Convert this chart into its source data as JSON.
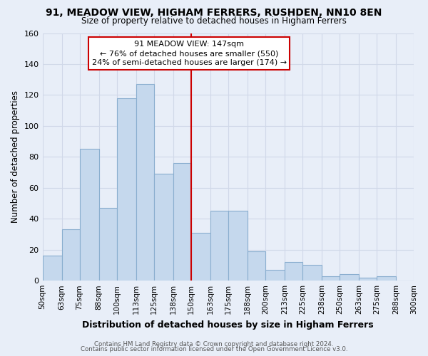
{
  "title": "91, MEADOW VIEW, HIGHAM FERRERS, RUSHDEN, NN10 8EN",
  "subtitle": "Size of property relative to detached houses in Higham Ferrers",
  "xlabel": "Distribution of detached houses by size in Higham Ferrers",
  "ylabel": "Number of detached properties",
  "bin_edges": [
    50,
    63,
    75,
    88,
    100,
    113,
    125,
    138,
    150,
    163,
    175,
    188,
    200,
    213,
    225,
    238,
    250,
    263,
    275,
    288,
    300
  ],
  "bar_heights": [
    16,
    33,
    85,
    47,
    118,
    127,
    69,
    76,
    31,
    45,
    45,
    19,
    7,
    12,
    10,
    3,
    4,
    2,
    3,
    0
  ],
  "bar_color": "#c5d8ed",
  "bar_edgecolor": "#8aaecf",
  "vline_x": 150,
  "vline_color": "#cc0000",
  "ylim": [
    0,
    160
  ],
  "yticks": [
    0,
    20,
    40,
    60,
    80,
    100,
    120,
    140,
    160
  ],
  "annotation_title": "91 MEADOW VIEW: 147sqm",
  "annotation_line1": "← 76% of detached houses are smaller (550)",
  "annotation_line2": "24% of semi-detached houses are larger (174) →",
  "annotation_box_color": "#ffffff",
  "annotation_box_edgecolor": "#cc0000",
  "footer_line1": "Contains HM Land Registry data © Crown copyright and database right 2024.",
  "footer_line2": "Contains public sector information licensed under the Open Government Licence v3.0.",
  "background_color": "#e8eef8",
  "plot_bg_color": "#e8eef8",
  "grid_color": "#d0d8e8"
}
